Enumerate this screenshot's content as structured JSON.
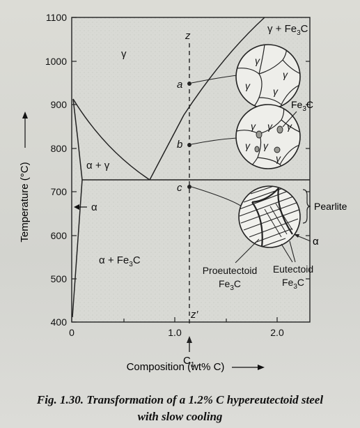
{
  "figure": {
    "caption_line1": "Fig. 1.30. Transformation of a 1.2% C hypereutectoid steel",
    "caption_line2": "with slow cooling"
  },
  "y_axis": {
    "label": "Temperature (°C)",
    "ticks": [
      "1100",
      "1000",
      "900",
      "800",
      "700",
      "600",
      "500",
      "400"
    ]
  },
  "x_axis": {
    "label": "Composition (wt% C)",
    "ticks": [
      "0",
      "1.0",
      "2.0"
    ],
    "marker_label": "C",
    "marker_sub": "1"
  },
  "phase_labels": {
    "gamma": "γ",
    "gamma_fe3c": "γ + Fe",
    "alpha_gamma": "α + γ",
    "alpha": "α",
    "alpha_fe3c": "α + Fe",
    "fe3c_suffix": "C",
    "sub3": "3"
  },
  "points": {
    "z": "z",
    "a": "a",
    "b": "b",
    "c": "c",
    "z_prime": "z′"
  },
  "micro_labels": {
    "gamma": "γ",
    "fe3c": "Fe",
    "pearlite": "Pearlite",
    "alpha": "α",
    "proeutectoid_line1": "Proeutectoid",
    "eutectoid_line1": "Eutectoid",
    "fe": "Fe"
  },
  "chart_data": {
    "type": "diagram",
    "xlim": [
      0,
      2.5
    ],
    "ylim": [
      400,
      1100
    ],
    "eutectoid_temperature": 727,
    "eutectoid_composition": 0.76,
    "alloy_composition": 1.2
  }
}
